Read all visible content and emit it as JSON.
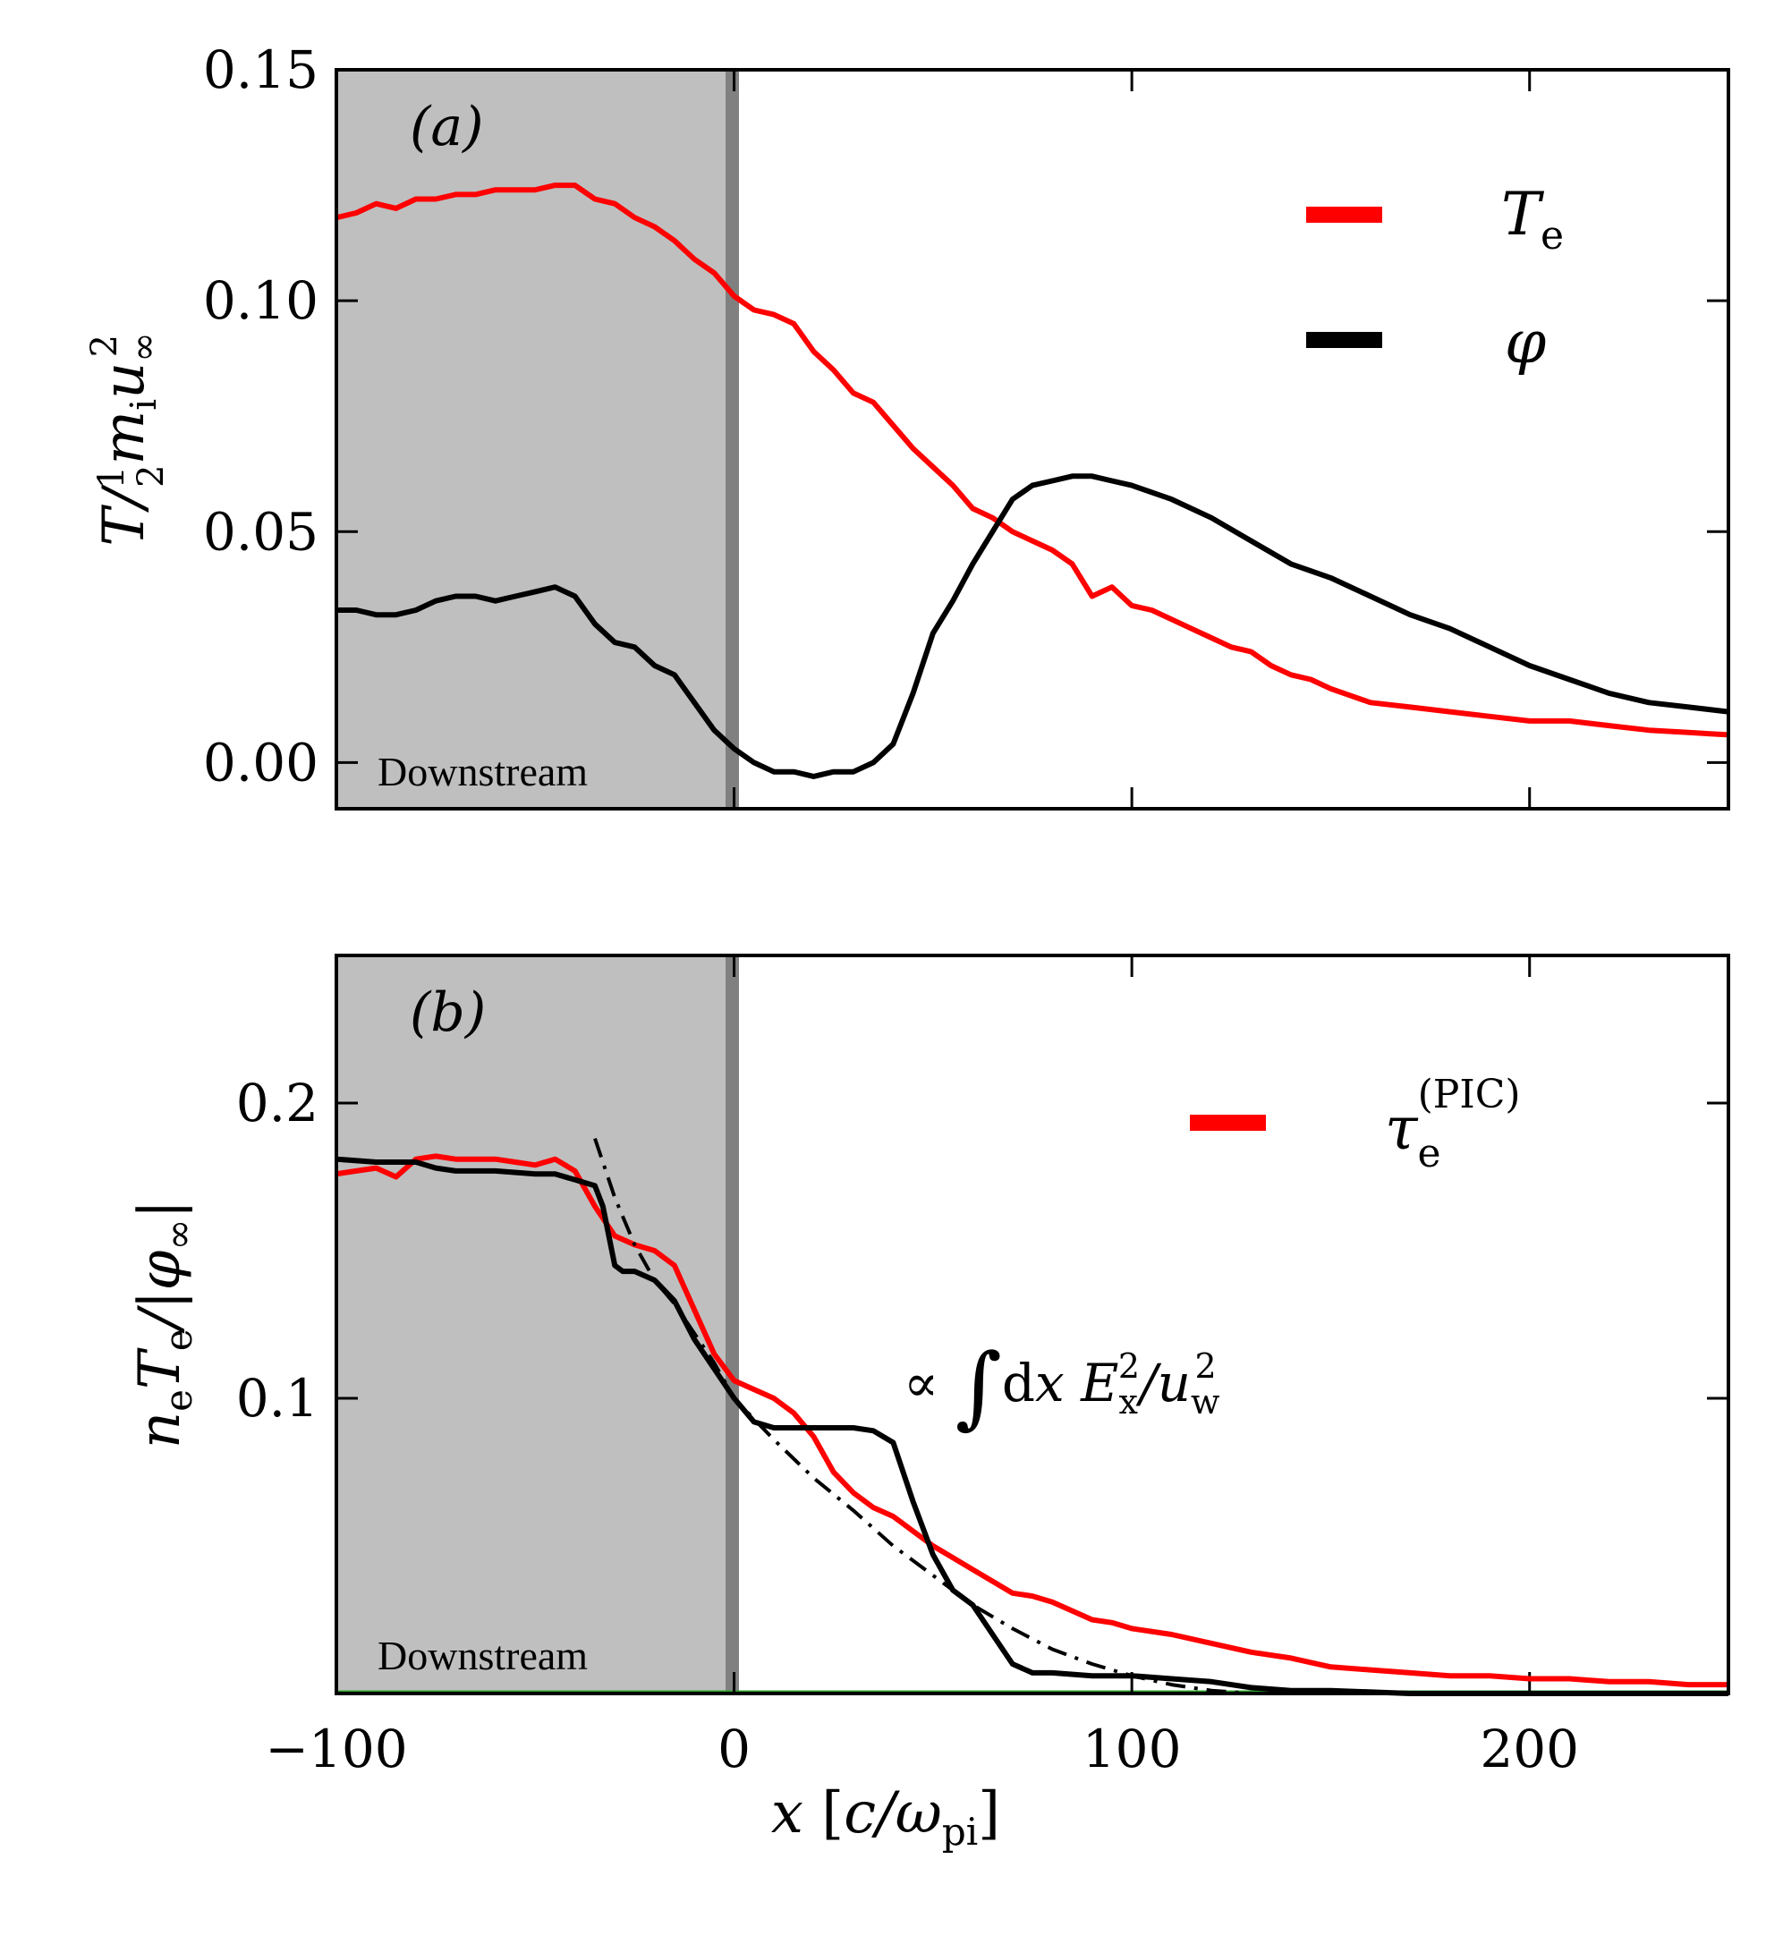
{
  "chart_data": [
    {
      "type": "line",
      "panel_tag": "(a)",
      "ylabel": "T/½ m_i u∞²",
      "xlabel": "",
      "xlim": [
        -100,
        250
      ],
      "ylim": [
        -0.01,
        0.15
      ],
      "yticks": [
        0.0,
        0.05,
        0.1,
        0.15
      ],
      "ytick_labels": [
        "0.00",
        "0.05",
        "0.10",
        "0.15"
      ],
      "xticks": [
        -100,
        0,
        100,
        200
      ],
      "shaded_region": {
        "x0": -100,
        "x1": 0,
        "label": "Downstream"
      },
      "legend": "top-right",
      "series": [
        {
          "name": "T_e",
          "color": "#ff0000",
          "x": [
            -100,
            -95,
            -90,
            -85,
            -80,
            -75,
            -70,
            -65,
            -60,
            -55,
            -50,
            -45,
            -40,
            -35,
            -30,
            -25,
            -20,
            -15,
            -10,
            -5,
            0,
            5,
            10,
            15,
            20,
            25,
            30,
            35,
            40,
            45,
            50,
            55,
            60,
            65,
            70,
            75,
            80,
            85,
            90,
            95,
            100,
            105,
            110,
            115,
            120,
            125,
            130,
            135,
            140,
            145,
            150,
            160,
            170,
            180,
            190,
            200,
            210,
            220,
            230,
            240,
            250
          ],
          "y": [
            0.118,
            0.119,
            0.121,
            0.12,
            0.122,
            0.122,
            0.123,
            0.123,
            0.124,
            0.124,
            0.124,
            0.125,
            0.125,
            0.122,
            0.121,
            0.118,
            0.116,
            0.113,
            0.109,
            0.106,
            0.101,
            0.098,
            0.097,
            0.095,
            0.089,
            0.085,
            0.08,
            0.078,
            0.073,
            0.068,
            0.064,
            0.06,
            0.055,
            0.053,
            0.05,
            0.048,
            0.046,
            0.043,
            0.036,
            0.038,
            0.034,
            0.033,
            0.031,
            0.029,
            0.027,
            0.025,
            0.024,
            0.021,
            0.019,
            0.018,
            0.016,
            0.013,
            0.012,
            0.011,
            0.01,
            0.009,
            0.009,
            0.008,
            0.007,
            0.0065,
            0.006
          ]
        },
        {
          "name": "φ",
          "color": "#000000",
          "x": [
            -100,
            -95,
            -90,
            -85,
            -80,
            -75,
            -70,
            -65,
            -60,
            -55,
            -50,
            -45,
            -40,
            -35,
            -30,
            -25,
            -20,
            -15,
            -10,
            -5,
            0,
            5,
            10,
            15,
            20,
            25,
            30,
            35,
            40,
            45,
            50,
            55,
            60,
            65,
            70,
            75,
            80,
            85,
            90,
            95,
            100,
            110,
            120,
            130,
            140,
            150,
            160,
            170,
            180,
            190,
            200,
            210,
            220,
            230,
            240,
            250
          ],
          "y": [
            0.033,
            0.033,
            0.032,
            0.032,
            0.033,
            0.035,
            0.036,
            0.036,
            0.035,
            0.036,
            0.037,
            0.038,
            0.036,
            0.03,
            0.026,
            0.025,
            0.021,
            0.019,
            0.013,
            0.007,
            0.003,
            0.0,
            -0.002,
            -0.002,
            -0.003,
            -0.002,
            -0.002,
            0.0,
            0.004,
            0.015,
            0.028,
            0.035,
            0.043,
            0.05,
            0.057,
            0.06,
            0.061,
            0.062,
            0.062,
            0.061,
            0.06,
            0.057,
            0.053,
            0.048,
            0.043,
            0.04,
            0.036,
            0.032,
            0.029,
            0.025,
            0.021,
            0.018,
            0.015,
            0.013,
            0.012,
            0.011
          ]
        }
      ]
    },
    {
      "type": "line",
      "panel_tag": "(b)",
      "ylabel": "n_e T_e / |φ∞|",
      "xlabel": "x [c/ω_pi]",
      "xlim": [
        -100,
        250
      ],
      "ylim": [
        0.0,
        0.25
      ],
      "yticks": [
        0.1,
        0.2
      ],
      "ytick_labels": [
        "0.1",
        "0.2"
      ],
      "xticks": [
        -100,
        0,
        100,
        200
      ],
      "xtick_labels": [
        "−100",
        "0",
        "100",
        "200"
      ],
      "shaded_region": {
        "x0": -100,
        "x1": 0,
        "label": "Downstream"
      },
      "legend": "top-right",
      "annotation": "∝ ∫dx E_x²/u_w²",
      "series": [
        {
          "name": "τ_e^(PIC)",
          "color": "#ff0000",
          "x": [
            -100,
            -95,
            -90,
            -85,
            -80,
            -75,
            -70,
            -65,
            -60,
            -55,
            -50,
            -45,
            -40,
            -35,
            -30,
            -25,
            -20,
            -15,
            -10,
            -5,
            0,
            5,
            10,
            15,
            20,
            25,
            30,
            35,
            40,
            45,
            50,
            55,
            60,
            65,
            70,
            75,
            80,
            85,
            90,
            95,
            100,
            110,
            120,
            130,
            140,
            150,
            160,
            170,
            180,
            190,
            200,
            210,
            220,
            230,
            240,
            250
          ],
          "y": [
            0.176,
            0.177,
            0.178,
            0.175,
            0.181,
            0.182,
            0.181,
            0.181,
            0.181,
            0.18,
            0.179,
            0.181,
            0.177,
            0.165,
            0.155,
            0.152,
            0.15,
            0.145,
            0.13,
            0.115,
            0.106,
            0.103,
            0.1,
            0.095,
            0.087,
            0.075,
            0.068,
            0.063,
            0.06,
            0.055,
            0.05,
            0.046,
            0.042,
            0.038,
            0.034,
            0.033,
            0.031,
            0.028,
            0.025,
            0.024,
            0.022,
            0.02,
            0.017,
            0.014,
            0.012,
            0.009,
            0.008,
            0.007,
            0.006,
            0.006,
            0.005,
            0.005,
            0.004,
            0.004,
            0.003,
            0.003
          ]
        },
        {
          "name": "",
          "color": "#000000",
          "x": [
            -100,
            -90,
            -80,
            -75,
            -70,
            -60,
            -50,
            -45,
            -40,
            -35,
            -33,
            -30,
            -28,
            -25,
            -20,
            -15,
            -10,
            -5,
            0,
            5,
            10,
            20,
            30,
            35,
            40,
            45,
            50,
            55,
            60,
            65,
            70,
            75,
            80,
            90,
            100,
            110,
            120,
            130,
            140,
            150,
            170,
            200,
            250
          ],
          "y": [
            0.181,
            0.18,
            0.18,
            0.178,
            0.177,
            0.177,
            0.176,
            0.176,
            0.174,
            0.172,
            0.165,
            0.145,
            0.143,
            0.143,
            0.14,
            0.133,
            0.12,
            0.11,
            0.1,
            0.092,
            0.09,
            0.09,
            0.09,
            0.089,
            0.085,
            0.065,
            0.047,
            0.035,
            0.03,
            0.02,
            0.01,
            0.007,
            0.007,
            0.006,
            0.006,
            0.005,
            0.004,
            0.002,
            0.001,
            0.001,
            0.0,
            0.0,
            0.0
          ]
        },
        {
          "name": "",
          "color": "#000000",
          "dash": "dashdot",
          "x": [
            -35,
            -30,
            -25,
            -20,
            -15,
            -10,
            -5,
            0,
            10,
            20,
            30,
            40,
            50,
            60,
            70,
            80,
            90,
            100,
            110,
            120,
            130
          ],
          "y": [
            0.188,
            0.168,
            0.152,
            0.14,
            0.132,
            0.122,
            0.112,
            0.1,
            0.086,
            0.073,
            0.062,
            0.05,
            0.04,
            0.03,
            0.022,
            0.015,
            0.01,
            0.006,
            0.003,
            0.001,
            0.0
          ]
        }
      ]
    }
  ]
}
